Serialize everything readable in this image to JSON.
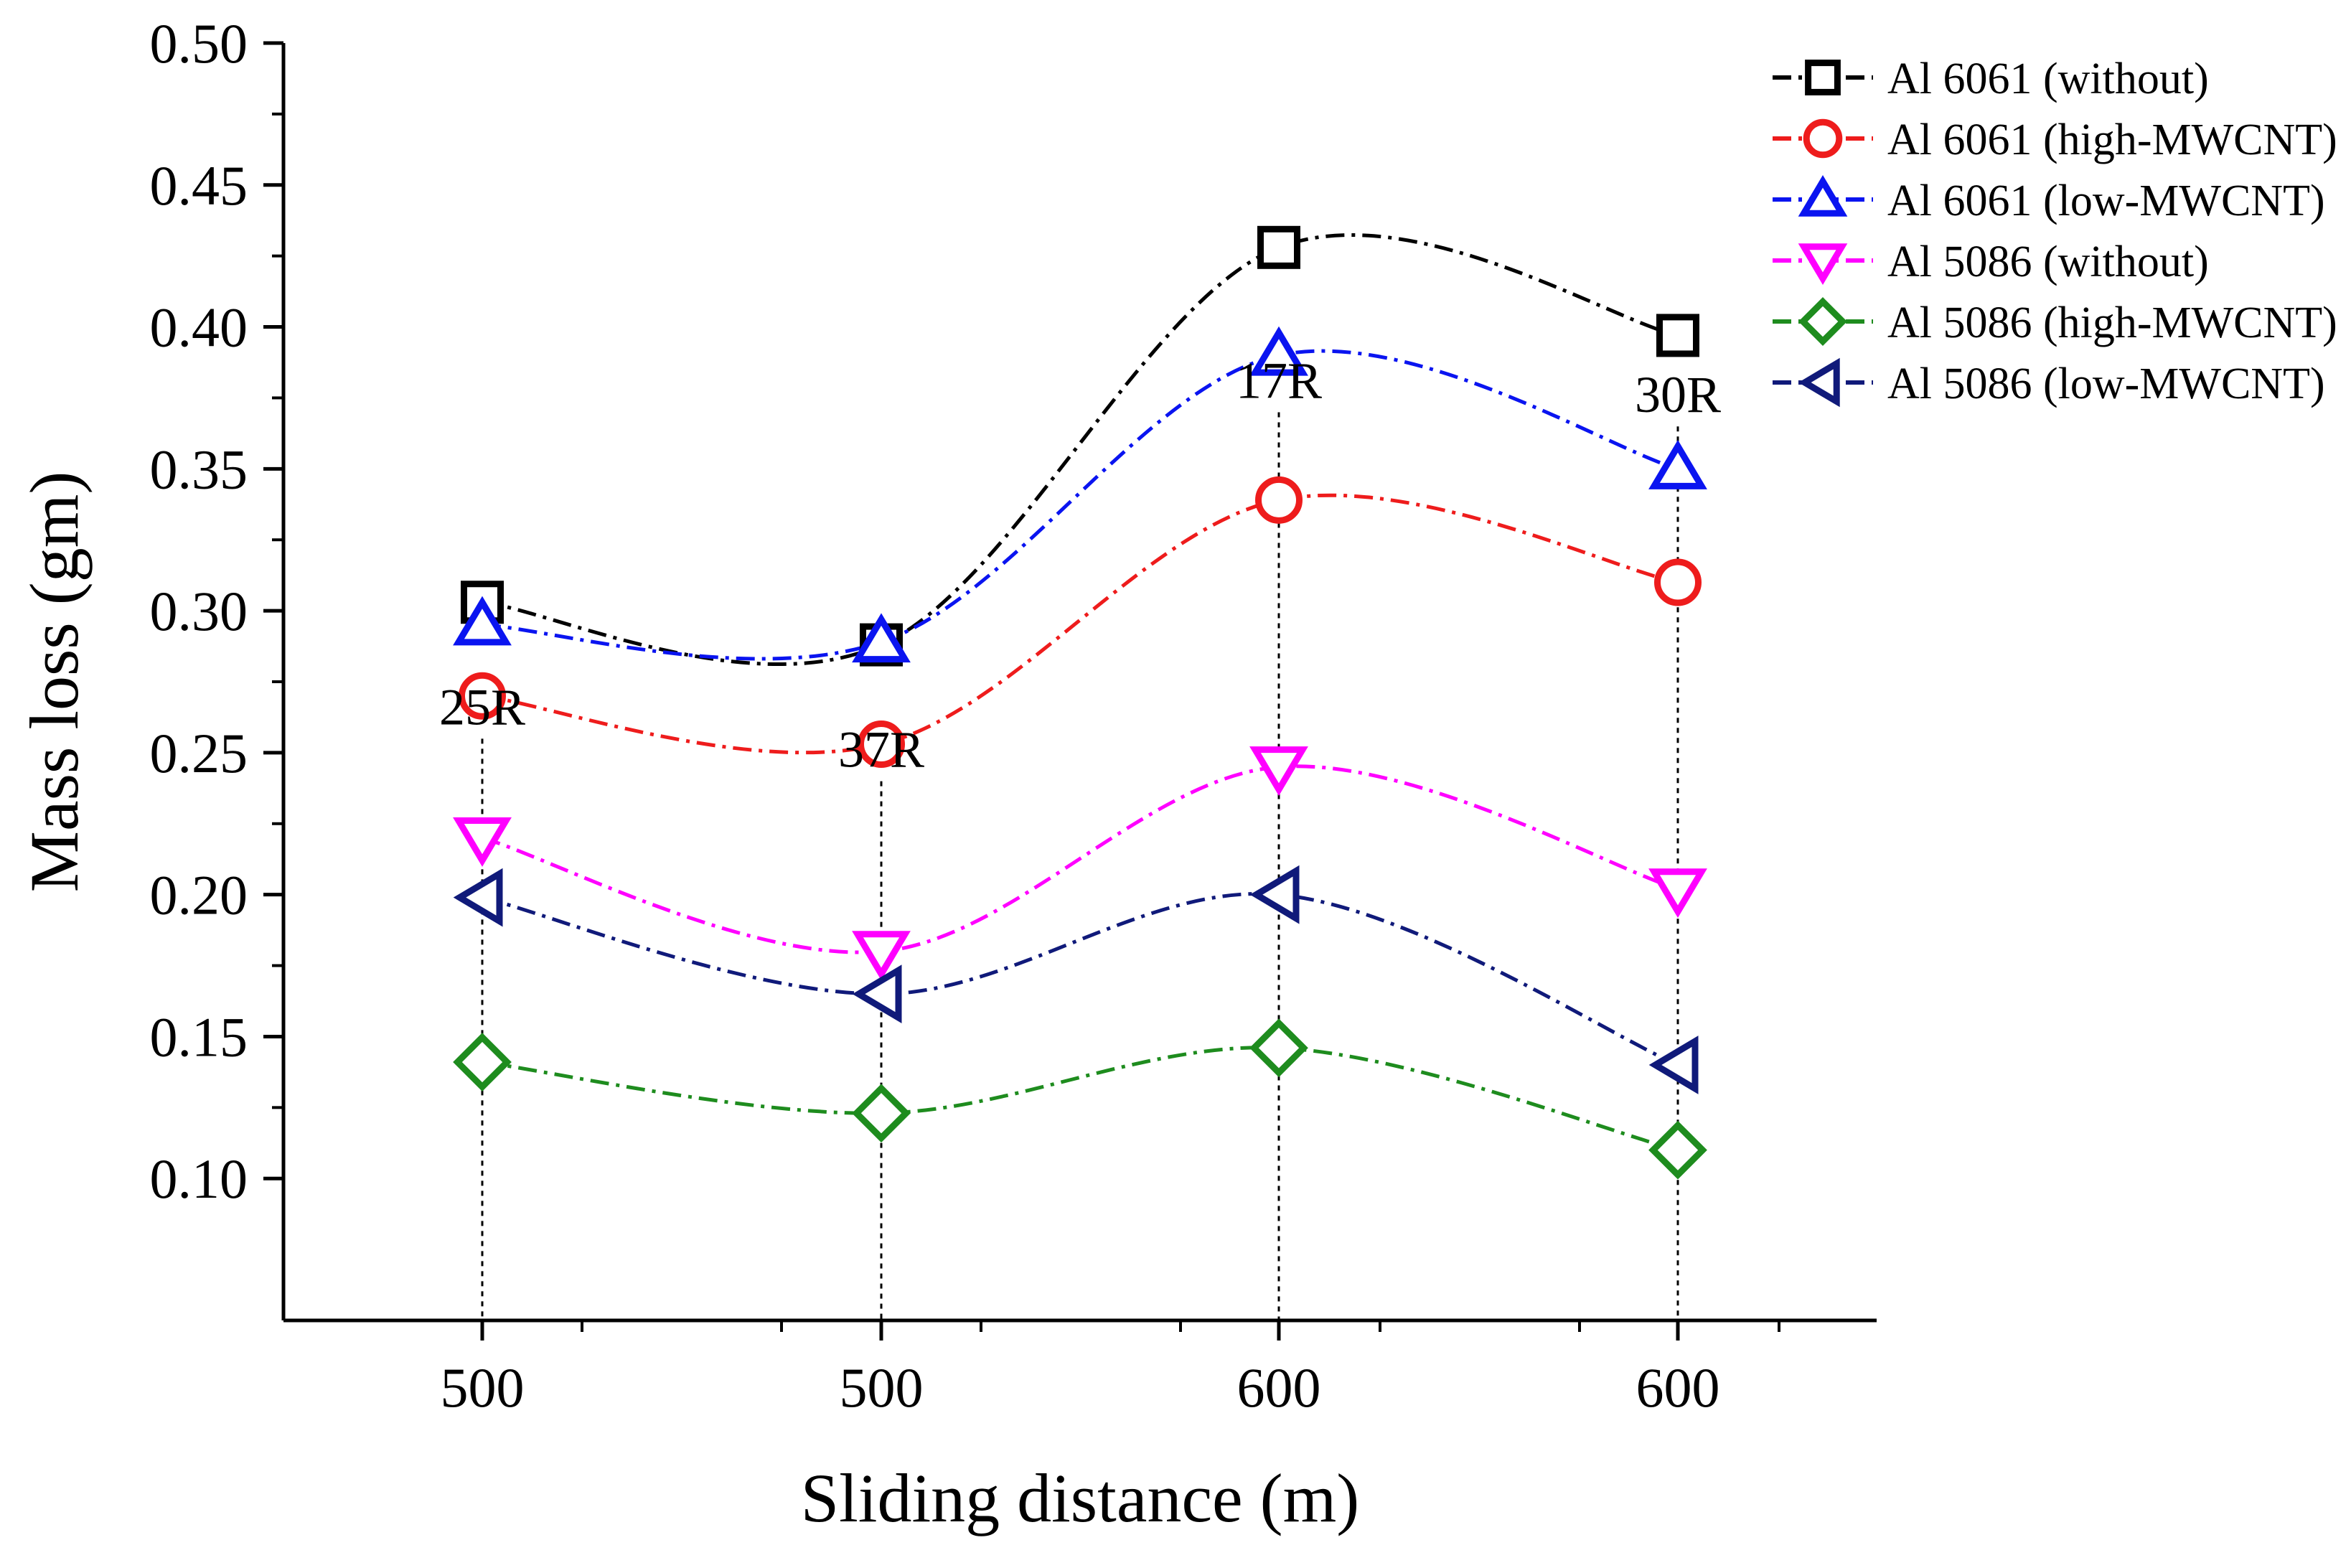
{
  "chart_data": {
    "type": "line",
    "title": "",
    "xlabel": "Sliding distance (m)",
    "ylabel": "Mass loss (gm)",
    "categories": [
      "500",
      "500",
      "600",
      "600"
    ],
    "point_labels": [
      "25R",
      "37R",
      "17R",
      "30R"
    ],
    "point_label_values": [
      0.26,
      0.245,
      0.375,
      0.37
    ],
    "ylim": [
      0.05,
      0.5
    ],
    "yticks": [
      0.1,
      0.15,
      0.2,
      0.25,
      0.3,
      0.35,
      0.4,
      0.45,
      0.5
    ],
    "ytick_labels": [
      "0.10",
      "0.15",
      "0.20",
      "0.25",
      "0.30",
      "0.35",
      "0.40",
      "0.45",
      "0.50"
    ],
    "legend_position": "top-right",
    "series": [
      {
        "name": "Al 6061 (without)",
        "color": "#000000",
        "marker": "square",
        "values": [
          0.303,
          0.288,
          0.428,
          0.397
        ]
      },
      {
        "name": "Al 6061 (high-MWCNT)",
        "color": "#ee1c1c",
        "marker": "circle",
        "values": [
          0.27,
          0.253,
          0.339,
          0.31
        ]
      },
      {
        "name": "Al 6061 (low-MWCNT)",
        "color": "#0a14f0",
        "marker": "triangle-up",
        "values": [
          0.295,
          0.289,
          0.39,
          0.35
        ]
      },
      {
        "name": "Al 5086 (without)",
        "color": "#ff00ff",
        "marker": "triangle-down",
        "values": [
          0.22,
          0.18,
          0.245,
          0.202
        ]
      },
      {
        "name": "Al 5086 (high-MWCNT)",
        "color": "#1e8c1e",
        "marker": "diamond",
        "values": [
          0.141,
          0.123,
          0.146,
          0.11
        ]
      },
      {
        "name": "Al 5086 (low-MWCNT)",
        "color": "#101a7a",
        "marker": "triangle-left",
        "values": [
          0.199,
          0.165,
          0.2,
          0.14
        ]
      }
    ]
  }
}
